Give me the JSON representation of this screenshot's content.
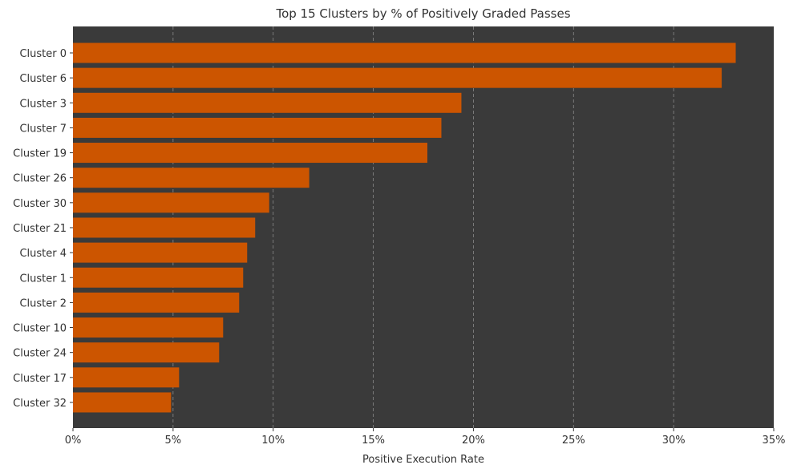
{
  "chart_data": {
    "type": "bar",
    "orientation": "horizontal",
    "title": "Top 15 Clusters by % of Positively Graded Passes",
    "xlabel": "Positive Execution Rate",
    "ylabel": "",
    "xlim": [
      0,
      35
    ],
    "xticks": [
      0,
      5,
      10,
      15,
      20,
      25,
      30,
      35
    ],
    "xtick_labels": [
      "0%",
      "5%",
      "10%",
      "15%",
      "20%",
      "25%",
      "30%",
      "35%"
    ],
    "grid": "x-dashed",
    "categories": [
      "Cluster 0",
      "Cluster 6",
      "Cluster 3",
      "Cluster 7",
      "Cluster 19",
      "Cluster 26",
      "Cluster 30",
      "Cluster 21",
      "Cluster 4",
      "Cluster 1",
      "Cluster 2",
      "Cluster 10",
      "Cluster 24",
      "Cluster 17",
      "Cluster 32"
    ],
    "values": [
      33.1,
      32.4,
      19.4,
      18.4,
      17.7,
      11.8,
      9.8,
      9.1,
      8.7,
      8.5,
      8.3,
      7.5,
      7.3,
      5.3,
      4.9
    ],
    "colors": {
      "bar": "#cc5500",
      "plot_background": "#3a3a3a",
      "grid": "#8a8a8a",
      "text": "#333333"
    }
  }
}
